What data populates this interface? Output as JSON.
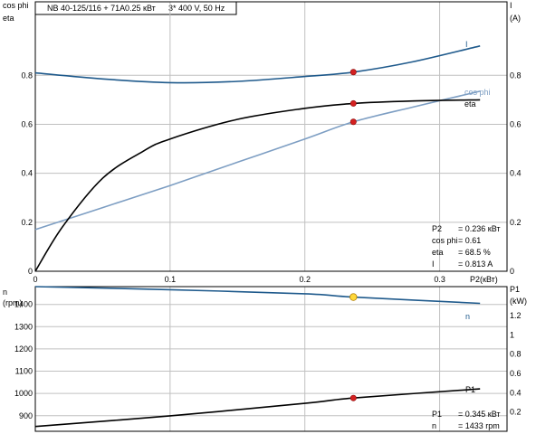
{
  "header": {
    "model": "NB 40-125/116 + 71A",
    "power": "0.25 кВт",
    "supply": "3* 400 V, 50 Hz"
  },
  "colors": {
    "current": "#1f5a8c",
    "eta": "#000000",
    "cosphi": "#7d9ec3",
    "speed": "#1f5a8c",
    "p1": "#000000",
    "duty_point": "#d42020",
    "duty_point_speed": "#ffd83a",
    "grid": "#c0c0c0"
  },
  "chart_data": [
    {
      "type": "line",
      "xlabel": "P2(кВт)",
      "xlim": [
        0,
        0.35
      ],
      "xticks": [
        0,
        0.1,
        0.2,
        0.3
      ],
      "xtick_labels": [
        "0",
        "0.1",
        "0.2",
        "0.3"
      ],
      "left_axis": {
        "labels": [
          "cos phi",
          "eta"
        ],
        "ylim": [
          0,
          1.1
        ],
        "ticks": [
          0,
          0.2,
          0.4,
          0.6,
          0.8
        ],
        "tick_labels": [
          "0",
          "0.2",
          "0.4",
          "0.6",
          "0.8"
        ]
      },
      "right_axis": {
        "labels": [
          "I",
          "(A)"
        ],
        "ylim": [
          0,
          1.1
        ],
        "ticks": [
          0,
          0.2,
          0.4,
          0.6,
          0.8
        ],
        "tick_labels": [
          "0",
          "0.2",
          "0.4",
          "0.6",
          "0.8"
        ]
      },
      "grid": true,
      "series": [
        {
          "name": "I",
          "axis": "right",
          "color_key": "current",
          "x": [
            0,
            0.05,
            0.1,
            0.15,
            0.2,
            0.236,
            0.28,
            0.33
          ],
          "y": [
            0.81,
            0.785,
            0.77,
            0.775,
            0.795,
            0.813,
            0.855,
            0.92
          ]
        },
        {
          "name": "cos phi",
          "axis": "left",
          "color_key": "cosphi",
          "x": [
            0,
            0.05,
            0.1,
            0.15,
            0.2,
            0.236,
            0.28,
            0.33
          ],
          "y": [
            0.17,
            0.26,
            0.35,
            0.445,
            0.54,
            0.61,
            0.67,
            0.735
          ]
        },
        {
          "name": "eta",
          "axis": "left",
          "color_key": "eta",
          "x": [
            0,
            0.02,
            0.05,
            0.08,
            0.1,
            0.15,
            0.2,
            0.236,
            0.28,
            0.33
          ],
          "y": [
            0,
            0.18,
            0.38,
            0.49,
            0.54,
            0.62,
            0.665,
            0.685,
            0.695,
            0.7
          ]
        }
      ],
      "duty_point": {
        "x": 0.236,
        "points": [
          0.813,
          0.685,
          0.61
        ]
      },
      "readout": [
        {
          "label": "P2",
          "value": "= 0.236 кВт"
        },
        {
          "label": "cos phi",
          "value": "= 0.61"
        },
        {
          "label": "eta",
          "value": "= 68.5 %"
        },
        {
          "label": "I",
          "value": "= 0.813 A"
        }
      ]
    },
    {
      "type": "line",
      "xlim": [
        0,
        0.35
      ],
      "left_axis": {
        "labels": [
          "n",
          "(rpm)"
        ],
        "ylim": [
          830,
          1480
        ],
        "ticks": [
          900,
          1000,
          1100,
          1200,
          1300,
          1400
        ],
        "tick_labels": [
          "900",
          "1000",
          "1100",
          "1200",
          "1300",
          "1400"
        ]
      },
      "right_axis": {
        "labels": [
          "P1",
          "(kW)"
        ],
        "ylim": [
          0,
          1.5
        ],
        "ticks": [
          0.2,
          0.4,
          0.6,
          0.8,
          1.0,
          1.2
        ],
        "tick_labels": [
          "0.2",
          "0.4",
          "0.6",
          "0.8",
          "1",
          "1.2"
        ]
      },
      "grid": true,
      "series": [
        {
          "name": "n",
          "axis": "left",
          "color_key": "speed",
          "x": [
            0,
            0.1,
            0.2,
            0.236,
            0.33
          ],
          "y": [
            1480,
            1466,
            1448,
            1433,
            1405
          ]
        },
        {
          "name": "P1",
          "axis": "right",
          "color_key": "p1",
          "x": [
            0,
            0.1,
            0.2,
            0.236,
            0.33
          ],
          "y": [
            0.05,
            0.16,
            0.29,
            0.345,
            0.44
          ]
        }
      ],
      "duty_point": {
        "x": 0.236,
        "speed": 1433,
        "p1": 0.345
      },
      "readout": [
        {
          "label": "P1",
          "value": "= 0.345 кВт"
        },
        {
          "label": "n",
          "value": "= 1433 rpm"
        }
      ]
    }
  ]
}
